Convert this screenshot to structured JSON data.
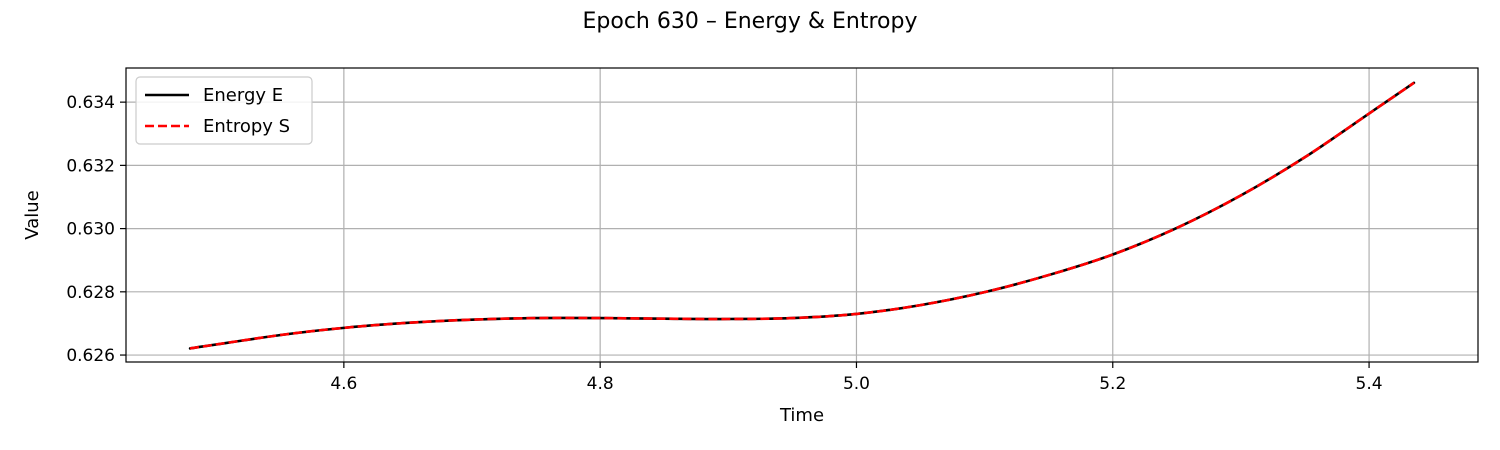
{
  "chart_data": {
    "type": "line",
    "title": "Epoch 630 – Energy & Entropy",
    "xlabel": "Time",
    "ylabel": "Value",
    "xlim": [
      4.43,
      5.485
    ],
    "ylim": [
      0.62578,
      0.63508
    ],
    "xticks": [
      4.6,
      4.8,
      5.0,
      5.2,
      5.4
    ],
    "xtick_labels": [
      "4.6",
      "4.8",
      "5.0",
      "5.2",
      "5.4"
    ],
    "yticks": [
      0.626,
      0.628,
      0.63,
      0.632,
      0.634
    ],
    "ytick_labels": [
      "0.626",
      "0.628",
      "0.630",
      "0.632",
      "0.634"
    ],
    "grid": true,
    "legend_position": "top-left",
    "x": [
      4.48,
      4.55,
      4.6,
      4.65,
      4.7,
      4.75,
      4.8,
      4.85,
      4.9,
      4.95,
      5.0,
      5.05,
      5.1,
      5.15,
      5.2,
      5.25,
      5.3,
      5.35,
      5.4,
      5.435
    ],
    "series": [
      {
        "name": "Energy E",
        "color": "#000000",
        "style": "solid",
        "values": [
          0.62621,
          0.62663,
          0.62686,
          0.62702,
          0.62712,
          0.62717,
          0.62717,
          0.62715,
          0.62714,
          0.62717,
          0.6273,
          0.62758,
          0.62799,
          0.62853,
          0.62918,
          0.63002,
          0.63105,
          0.63226,
          0.63364,
          0.63461
        ]
      },
      {
        "name": "Entropy S",
        "color": "#ff0000",
        "style": "dashed",
        "values": [
          0.62621,
          0.62663,
          0.62686,
          0.62702,
          0.62712,
          0.62717,
          0.62717,
          0.62715,
          0.62714,
          0.62717,
          0.6273,
          0.62758,
          0.62799,
          0.62853,
          0.62918,
          0.63002,
          0.63105,
          0.63226,
          0.63364,
          0.63461
        ]
      }
    ]
  }
}
